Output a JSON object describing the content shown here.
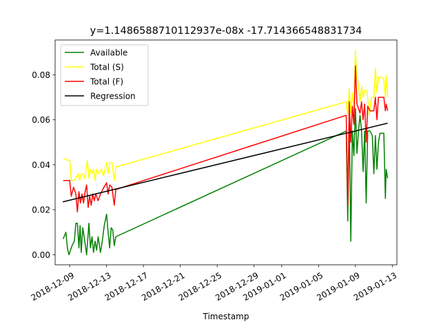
{
  "chart_data": {
    "type": "line",
    "title": "y=1.1486588710112937e-08x -17.714366548831734",
    "xlabel": "Timestamp",
    "ylabel": "",
    "xlim": [
      "2018-12-07T10:00",
      "2019-01-13T12:00"
    ],
    "ylim": [
      -0.0045,
      0.0955
    ],
    "x_ticks": [
      "2018-12-09",
      "2018-12-13",
      "2018-12-17",
      "2018-12-21",
      "2018-12-25",
      "2018-12-29",
      "2019-01-01",
      "2019-01-05",
      "2019-01-09",
      "2019-01-13"
    ],
    "y_ticks": [
      0.0,
      0.02,
      0.04,
      0.06,
      0.08
    ],
    "y_tick_labels": [
      "0.00",
      "0.02",
      "0.04",
      "0.06",
      "0.08"
    ],
    "grid": false,
    "legend_position": "top-left",
    "series": [
      {
        "name": "Available",
        "color": "#008000",
        "points": [
          [
            "2018-12-08T07:00",
            0.007
          ],
          [
            "2018-12-08T14:00",
            0.01
          ],
          [
            "2018-12-08T18:00",
            0.003
          ],
          [
            "2018-12-08T22:00",
            0.0
          ],
          [
            "2018-12-09T06:00",
            0.004
          ],
          [
            "2018-12-09T12:00",
            0.006
          ],
          [
            "2018-12-09T16:00",
            0.014
          ],
          [
            "2018-12-09T20:00",
            0.014
          ],
          [
            "2018-12-10T00:00",
            0.003
          ],
          [
            "2018-12-10T03:00",
            0.013
          ],
          [
            "2018-12-10T06:00",
            0.001
          ],
          [
            "2018-12-10T10:00",
            0.012
          ],
          [
            "2018-12-10T16:00",
            0.005
          ],
          [
            "2018-12-10T20:00",
            0.0
          ],
          [
            "2018-12-11T02:00",
            0.014
          ],
          [
            "2018-12-11T06:00",
            0.003
          ],
          [
            "2018-12-11T10:00",
            0.008
          ],
          [
            "2018-12-11T14:00",
            0.001
          ],
          [
            "2018-12-11T18:00",
            0.006
          ],
          [
            "2018-12-11T22:00",
            0.002
          ],
          [
            "2018-12-12T02:00",
            0.008
          ],
          [
            "2018-12-12T08:00",
            0.001
          ],
          [
            "2018-12-12T12:00",
            0.005
          ],
          [
            "2018-12-12T18:00",
            0.013
          ],
          [
            "2018-12-13T00:00",
            0.018
          ],
          [
            "2018-12-13T04:00",
            0.01
          ],
          [
            "2018-12-13T08:00",
            0.003
          ],
          [
            "2018-12-13T12:00",
            0.012
          ],
          [
            "2018-12-13T16:00",
            0.011
          ],
          [
            "2018-12-13T20:00",
            0.004
          ],
          [
            "2018-12-14T00:00",
            0.008
          ],
          [
            "2019-01-08T00:00",
            0.055
          ],
          [
            "2019-01-08T04:00",
            0.015
          ],
          [
            "2019-01-08T08:00",
            0.06
          ],
          [
            "2019-01-08T12:00",
            0.006
          ],
          [
            "2019-01-08T16:00",
            0.055
          ],
          [
            "2019-01-08T20:00",
            0.044
          ],
          [
            "2019-01-09T00:00",
            0.065
          ],
          [
            "2019-01-09T04:00",
            0.045
          ],
          [
            "2019-01-09T08:00",
            0.055
          ],
          [
            "2019-01-09T12:00",
            0.062
          ],
          [
            "2019-01-09T16:00",
            0.055
          ],
          [
            "2019-01-09T20:00",
            0.037
          ],
          [
            "2019-01-10T00:00",
            0.055
          ],
          [
            "2019-01-10T04:00",
            0.023
          ],
          [
            "2019-01-10T08:00",
            0.055
          ],
          [
            "2019-01-10T14:00",
            0.055
          ],
          [
            "2019-01-10T20:00",
            0.053
          ],
          [
            "2019-01-11T00:00",
            0.036
          ],
          [
            "2019-01-11T04:00",
            0.053
          ],
          [
            "2019-01-11T08:00",
            0.038
          ],
          [
            "2019-01-11T12:00",
            0.05
          ],
          [
            "2019-01-11T16:00",
            0.054
          ],
          [
            "2019-01-11T20:00",
            0.054
          ],
          [
            "2019-01-12T02:00",
            0.054
          ],
          [
            "2019-01-12T06:00",
            0.025
          ],
          [
            "2019-01-12T08:00",
            0.038
          ],
          [
            "2019-01-12T12:00",
            0.034
          ]
        ]
      },
      {
        "name": "Total (S)",
        "color": "#ffff00",
        "points": [
          [
            "2018-12-08T07:00",
            0.043
          ],
          [
            "2018-12-08T18:00",
            0.042
          ],
          [
            "2018-12-09T00:00",
            0.042
          ],
          [
            "2018-12-09T04:00",
            0.033
          ],
          [
            "2018-12-09T10:00",
            0.033
          ],
          [
            "2018-12-09T16:00",
            0.034
          ],
          [
            "2018-12-09T22:00",
            0.036
          ],
          [
            "2018-12-10T02:00",
            0.033
          ],
          [
            "2018-12-10T06:00",
            0.036
          ],
          [
            "2018-12-10T10:00",
            0.036
          ],
          [
            "2018-12-10T14:00",
            0.034
          ],
          [
            "2018-12-10T18:00",
            0.037
          ],
          [
            "2018-12-10T22:00",
            0.042
          ],
          [
            "2018-12-11T02:00",
            0.034
          ],
          [
            "2018-12-11T06:00",
            0.038
          ],
          [
            "2018-12-11T10:00",
            0.036
          ],
          [
            "2018-12-11T14:00",
            0.038
          ],
          [
            "2018-12-11T18:00",
            0.033
          ],
          [
            "2018-12-11T22:00",
            0.038
          ],
          [
            "2018-12-12T04:00",
            0.036
          ],
          [
            "2018-12-12T10:00",
            0.038
          ],
          [
            "2018-12-12T16:00",
            0.035
          ],
          [
            "2018-12-13T00:00",
            0.041
          ],
          [
            "2018-12-13T04:00",
            0.036
          ],
          [
            "2018-12-13T08:00",
            0.041
          ],
          [
            "2018-12-13T14:00",
            0.041
          ],
          [
            "2018-12-13T20:00",
            0.033
          ],
          [
            "2018-12-14T00:00",
            0.039
          ],
          [
            "2019-01-08T00:00",
            0.068
          ],
          [
            "2019-01-08T04:00",
            0.062
          ],
          [
            "2019-01-08T08:00",
            0.074
          ],
          [
            "2019-01-08T12:00",
            0.063
          ],
          [
            "2019-01-08T16:00",
            0.072
          ],
          [
            "2019-01-08T20:00",
            0.065
          ],
          [
            "2019-01-09T00:00",
            0.091
          ],
          [
            "2019-01-09T04:00",
            0.078
          ],
          [
            "2019-01-09T08:00",
            0.076
          ],
          [
            "2019-01-09T12:00",
            0.068
          ],
          [
            "2019-01-09T16:00",
            0.075
          ],
          [
            "2019-01-09T20:00",
            0.07
          ],
          [
            "2019-01-10T00:00",
            0.073
          ],
          [
            "2019-01-10T06:00",
            0.073
          ],
          [
            "2019-01-10T12:00",
            0.062
          ],
          [
            "2019-01-10T18:00",
            0.07
          ],
          [
            "2019-01-11T00:00",
            0.07
          ],
          [
            "2019-01-11T04:00",
            0.083
          ],
          [
            "2019-01-11T08:00",
            0.072
          ],
          [
            "2019-01-11T12:00",
            0.079
          ],
          [
            "2019-01-11T18:00",
            0.079
          ],
          [
            "2019-01-12T02:00",
            0.078
          ],
          [
            "2019-01-12T06:00",
            0.07
          ],
          [
            "2019-01-12T08:00",
            0.08
          ],
          [
            "2019-01-12T12:00",
            0.07
          ]
        ]
      },
      {
        "name": "Total (F)",
        "color": "#ff0000",
        "points": [
          [
            "2018-12-08T07:00",
            0.033
          ],
          [
            "2018-12-08T18:00",
            0.033
          ],
          [
            "2018-12-09T00:00",
            0.033
          ],
          [
            "2018-12-09T04:00",
            0.026
          ],
          [
            "2018-12-09T10:00",
            0.03
          ],
          [
            "2018-12-09T16:00",
            0.027
          ],
          [
            "2018-12-09T20:00",
            0.019
          ],
          [
            "2018-12-10T00:00",
            0.028
          ],
          [
            "2018-12-10T04:00",
            0.023
          ],
          [
            "2018-12-10T08:00",
            0.027
          ],
          [
            "2018-12-10T12:00",
            0.023
          ],
          [
            "2018-12-10T16:00",
            0.028
          ],
          [
            "2018-12-10T20:00",
            0.031
          ],
          [
            "2018-12-11T00:00",
            0.021
          ],
          [
            "2018-12-11T04:00",
            0.026
          ],
          [
            "2018-12-11T08:00",
            0.022
          ],
          [
            "2018-12-11T12:00",
            0.027
          ],
          [
            "2018-12-11T16:00",
            0.024
          ],
          [
            "2018-12-11T20:00",
            0.027
          ],
          [
            "2018-12-12T02:00",
            0.024
          ],
          [
            "2018-12-12T08:00",
            0.027
          ],
          [
            "2018-12-12T14:00",
            0.029
          ],
          [
            "2018-12-13T00:00",
            0.032
          ],
          [
            "2018-12-13T04:00",
            0.027
          ],
          [
            "2018-12-13T08:00",
            0.031
          ],
          [
            "2018-12-13T14:00",
            0.03
          ],
          [
            "2018-12-13T20:00",
            0.022
          ],
          [
            "2018-12-14T00:00",
            0.029
          ],
          [
            "2019-01-08T00:00",
            0.062
          ],
          [
            "2019-01-08T04:00",
            0.022
          ],
          [
            "2019-01-08T08:00",
            0.068
          ],
          [
            "2019-01-08T12:00",
            0.05
          ],
          [
            "2019-01-08T16:00",
            0.066
          ],
          [
            "2019-01-08T20:00",
            0.058
          ],
          [
            "2019-01-09T00:00",
            0.084
          ],
          [
            "2019-01-09T04:00",
            0.067
          ],
          [
            "2019-01-09T08:00",
            0.065
          ],
          [
            "2019-01-09T12:00",
            0.063
          ],
          [
            "2019-01-09T16:00",
            0.068
          ],
          [
            "2019-01-09T20:00",
            0.06
          ],
          [
            "2019-01-10T00:00",
            0.067
          ],
          [
            "2019-01-10T04:00",
            0.05
          ],
          [
            "2019-01-10T08:00",
            0.066
          ],
          [
            "2019-01-10T14:00",
            0.064
          ],
          [
            "2019-01-10T20:00",
            0.064
          ],
          [
            "2019-01-11T00:00",
            0.064
          ],
          [
            "2019-01-11T04:00",
            0.07
          ],
          [
            "2019-01-11T08:00",
            0.06
          ],
          [
            "2019-01-11T12:00",
            0.07
          ],
          [
            "2019-01-11T18:00",
            0.07
          ],
          [
            "2019-01-12T02:00",
            0.07
          ],
          [
            "2019-01-12T06:00",
            0.064
          ],
          [
            "2019-01-12T08:00",
            0.067
          ],
          [
            "2019-01-12T12:00",
            0.064
          ]
        ]
      },
      {
        "name": "Regression",
        "color": "#000000",
        "points": [
          [
            "2018-12-08T06:00",
            0.0235
          ],
          [
            "2019-01-12T12:00",
            0.0585
          ]
        ]
      }
    ]
  }
}
